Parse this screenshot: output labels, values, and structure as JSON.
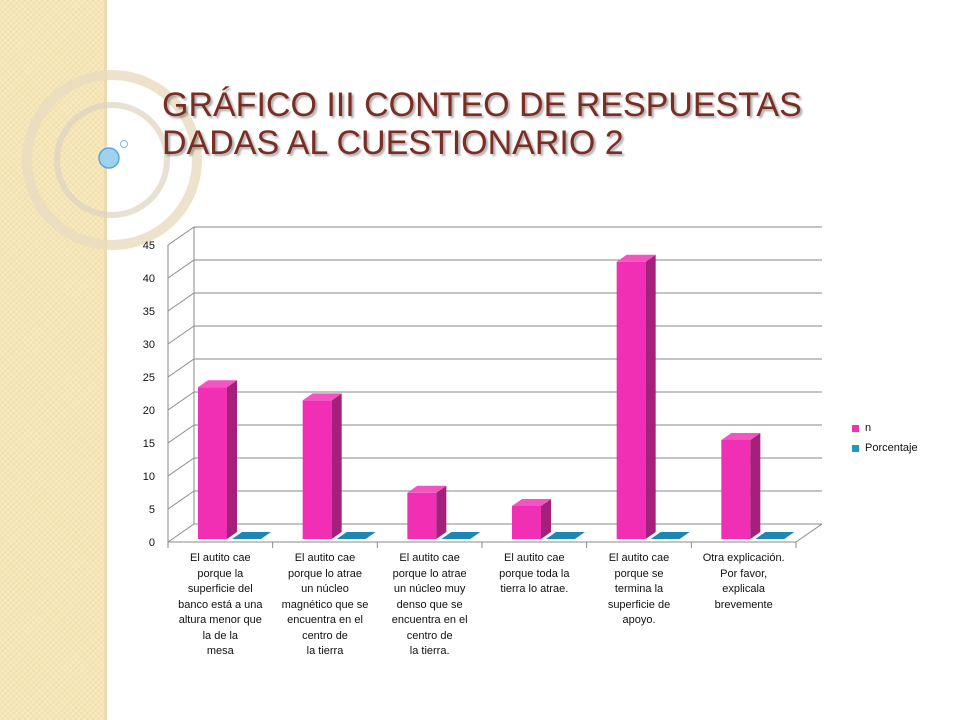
{
  "slide": {
    "title": "GRÁFICO III CONTEO DE RESPUESTAS DADAS AL CUESTIONARIO 2"
  },
  "colors": {
    "series_n": "#f12fb4",
    "series_porcentaje": "#1f96c9",
    "title": "#7a2d22",
    "side_band": "#f6e6b6"
  },
  "chart_data": {
    "type": "bar",
    "title": "",
    "xlabel": "",
    "ylabel": "",
    "ylim": [
      0,
      45
    ],
    "yticks": [
      "0",
      "5",
      "10",
      "15",
      "20",
      "25",
      "30",
      "35",
      "40",
      "45"
    ],
    "grid": true,
    "legend_position": "right",
    "categories": [
      "El autito cae\nporque la\nsuperficie del\nbanco está a una\naltura menor que\nla de la\nmesa",
      "El autito cae\nporque lo atrae\nun núcleo\nmagnético que se\nencuentra en el\ncentro de\nla tierra",
      "El autito cae\nporque lo atrae\nun núcleo muy\ndenso que se\nencuentra en el\ncentro de\nla tierra.",
      "El autito cae\nporque toda la\ntierra lo atrae.",
      "El autito cae\nporque se\ntermina la\nsuperficie de\napoyo.",
      "Otra explicación.\nPor favor,\nexplicala\nbrevemente"
    ],
    "series": [
      {
        "name": "n",
        "values": [
          23,
          21,
          7,
          5,
          42,
          15
        ]
      },
      {
        "name": "Porcentaje",
        "values": [
          0,
          0,
          0,
          0,
          0,
          0
        ]
      }
    ]
  }
}
